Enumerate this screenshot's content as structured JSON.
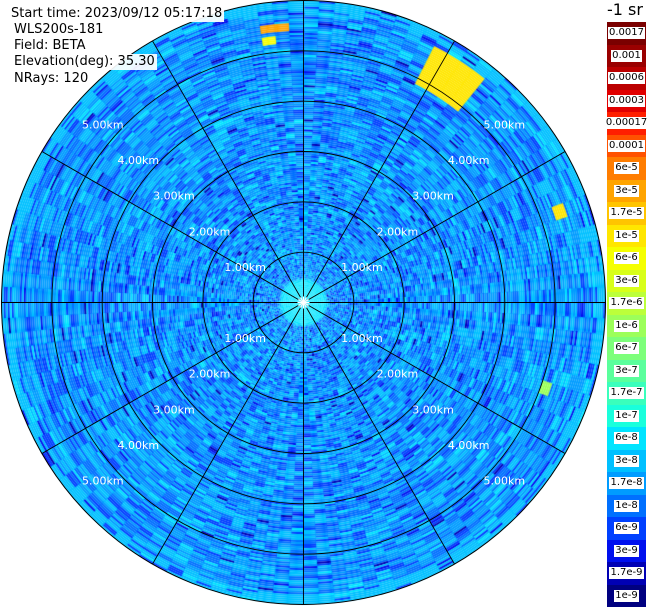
{
  "info": {
    "start_time": "Start time: 2023/09/12 05:17:18",
    "instrument": "WLS200s-181",
    "field": "Field: BETA",
    "elevation": "Elevation(deg): 35.30",
    "nrays": "NRays: 120"
  },
  "colorbar": {
    "unit": "-1 sr",
    "labels": [
      "0.0017",
      "0.001",
      "0.0006",
      "0.0003",
      "0.00017",
      "0.0001",
      "6e-5",
      "3e-5",
      "1.7e-5",
      "1e-5",
      "6e-6",
      "3e-6",
      "1.7e-6",
      "1e-6",
      "6e-7",
      "3e-7",
      "1.7e-7",
      "1e-7",
      "6e-8",
      "3e-8",
      "1.7e-8",
      "1e-8",
      "6e-9",
      "3e-9",
      "1.7e-9",
      "1e-9"
    ],
    "colors": [
      "#7a0000",
      "#9a0000",
      "#bb0000",
      "#e10000",
      "#ff1f00",
      "#ff5200",
      "#ff7d00",
      "#ffa400",
      "#ffc400",
      "#ffe600",
      "#f5ff00",
      "#d8ff1a",
      "#bcff3a",
      "#9cff5a",
      "#7dff7a",
      "#5aff9c",
      "#3affbc",
      "#1affdc",
      "#00e4ff",
      "#00c0ff",
      "#009cff",
      "#0070ff",
      "#0040ff",
      "#0010ee",
      "#0000b4",
      "#000080"
    ]
  },
  "chart_data": {
    "type": "heatmap",
    "projection": "polar-ppi",
    "field": "BETA",
    "nrays": 120,
    "range_rings_km": [
      1.0,
      2.0,
      3.0,
      4.0,
      5.0
    ],
    "ring_labels": [
      "1.00km",
      "2.00km",
      "3.00km",
      "4.00km",
      "5.00km"
    ],
    "max_range_km": 6.0,
    "spokes_deg": [
      0,
      30,
      60,
      90,
      120,
      150,
      180,
      210,
      240,
      270,
      300,
      330
    ],
    "grid": true,
    "background_beta": 1e-08,
    "features": [
      {
        "label": "north-near-rim",
        "azimuth_deg": [
          352,
          356
        ],
        "range_km": [
          5.4,
          5.55
        ],
        "beta": 3e-05
      },
      {
        "label": "north-near-rim-2",
        "azimuth_deg": [
          351,
          354
        ],
        "range_km": [
          5.15,
          5.3
        ],
        "beta": 6e-06
      },
      {
        "label": "northeast-streak",
        "azimuth_deg": [
          28,
          40
        ],
        "range_km": [
          4.9,
          5.7
        ],
        "beta": 1e-05
      },
      {
        "label": "east-northeast",
        "azimuth_deg": [
          70,
          73
        ],
        "range_km": [
          5.3,
          5.5
        ],
        "beta": 1e-05
      },
      {
        "label": "east-southeast",
        "azimuth_deg": [
          107,
          110
        ],
        "range_km": [
          5.0,
          5.2
        ],
        "beta": 1e-06
      },
      {
        "label": "central-core",
        "azimuth_deg": [
          0,
          360
        ],
        "range_km": [
          0.0,
          0.45
        ],
        "beta": 6e-08
      }
    ]
  }
}
